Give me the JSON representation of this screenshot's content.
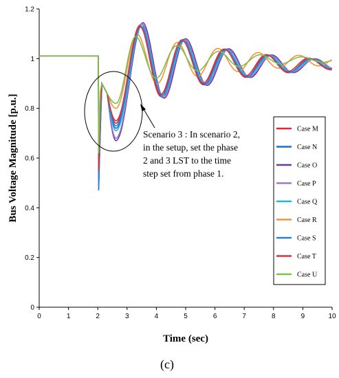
{
  "chart_data": {
    "type": "line",
    "xlabel": "Time (sec)",
    "ylabel": "Bus Voltage Magnitude [p.u.]",
    "xlim": [
      0,
      10
    ],
    "ylim": [
      0,
      1.2
    ],
    "xticks": [
      "0",
      "1",
      "2",
      "3",
      "4",
      "5",
      "6",
      "7",
      "8",
      "9",
      "10"
    ],
    "yticks": [
      "0",
      "0.2",
      "0.4",
      "0.6",
      "0.8",
      "1",
      "1.2"
    ],
    "grid": false,
    "legend_position": "right",
    "panel_label": "(c)",
    "annotation": [
      "Scenario 3 : In scenario 2,",
      "in the setup, set the phase",
      "2 and 3 LST to the time",
      "step set from phase 1."
    ],
    "series": [
      {
        "name": "Case M",
        "color": "#e8213a",
        "min": 0.74,
        "peak_t": 3.45,
        "peak_v": 1.135,
        "period": 1.45,
        "decay": 0.32,
        "mean": 0.975,
        "drop": 0.58,
        "fault_t": 2.02
      },
      {
        "name": "Case N",
        "color": "#1b6fc7",
        "min": 0.72,
        "peak_t": 3.5,
        "peak_v": 1.14,
        "period": 1.45,
        "decay": 0.33,
        "mean": 0.975,
        "drop": 0.47,
        "fault_t": 2.02
      },
      {
        "name": "Case O",
        "color": "#6a3aa0",
        "min": 0.67,
        "peak_t": 3.55,
        "peak_v": 1.145,
        "period": 1.47,
        "decay": 0.33,
        "mean": 0.975,
        "drop": 0.52,
        "fault_t": 2.02
      },
      {
        "name": "Case P",
        "color": "#9a7bc6",
        "min": 0.68,
        "peak_t": 3.52,
        "peak_v": 1.14,
        "period": 1.47,
        "decay": 0.34,
        "mean": 0.975,
        "drop": 0.53,
        "fault_t": 2.02
      },
      {
        "name": "Case Q",
        "color": "#17b8e6",
        "min": 0.71,
        "peak_t": 3.5,
        "peak_v": 1.13,
        "period": 1.46,
        "decay": 0.34,
        "mean": 0.975,
        "drop": 0.5,
        "fault_t": 2.02
      },
      {
        "name": "Case R",
        "color": "#f0953a",
        "min": 0.8,
        "peak_t": 3.35,
        "peak_v": 1.1,
        "period": 1.38,
        "decay": 0.28,
        "mean": 0.99,
        "drop": 0.6,
        "fault_t": 2.02
      },
      {
        "name": "Case S",
        "color": "#2e7fd3",
        "min": 0.73,
        "peak_t": 3.48,
        "peak_v": 1.13,
        "period": 1.45,
        "decay": 0.33,
        "mean": 0.975,
        "drop": 0.48,
        "fault_t": 2.02
      },
      {
        "name": "Case T",
        "color": "#d6333f",
        "min": 0.75,
        "peak_t": 3.45,
        "peak_v": 1.13,
        "period": 1.44,
        "decay": 0.32,
        "mean": 0.978,
        "drop": 0.55,
        "fault_t": 2.02
      },
      {
        "name": "Case U",
        "color": "#7fbf4a",
        "min": 0.82,
        "peak_t": 3.3,
        "peak_v": 1.09,
        "period": 1.42,
        "decay": 0.36,
        "mean": 0.995,
        "drop": 0.62,
        "fault_t": 2.02
      }
    ],
    "pre_fault_voltage": 1.01
  }
}
